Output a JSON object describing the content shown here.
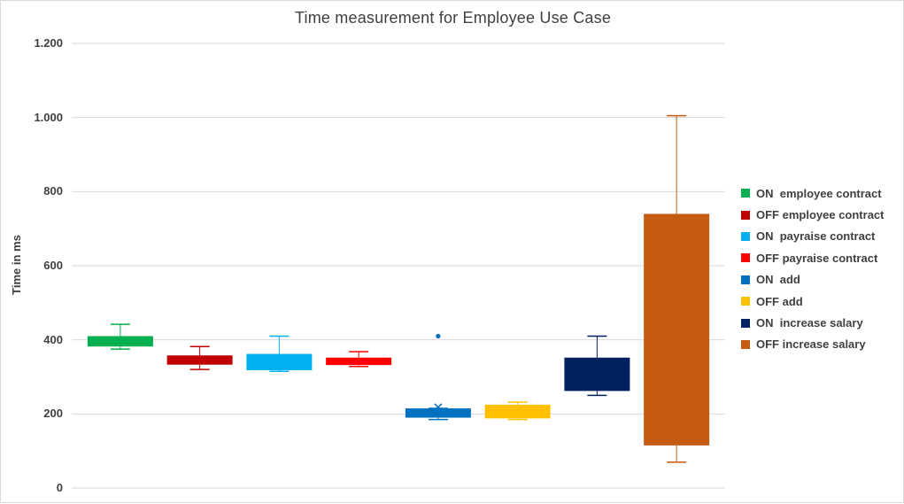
{
  "chart_data": {
    "type": "box",
    "title": "Time measurement  for Employee Use Case",
    "xlabel": "",
    "ylabel": "Time in ms",
    "ylim": [
      0,
      1200
    ],
    "yticks": [
      0,
      200,
      400,
      600,
      800,
      1000,
      1200
    ],
    "ytick_labels": [
      "0",
      "200",
      "400",
      "600",
      "800",
      "1.000",
      "1.200"
    ],
    "grid": true,
    "legend_position": "right",
    "series": [
      {
        "name": "ON  employee contract",
        "color": "#00b050",
        "min": 375,
        "q1": 382,
        "median": 382,
        "q3": 410,
        "max": 442,
        "mean": null,
        "outliers": []
      },
      {
        "name": "OFF employee contract",
        "color": "#c00000",
        "min": 320,
        "q1": 333,
        "median": 333,
        "q3": 358,
        "max": 382,
        "mean": null,
        "outliers": []
      },
      {
        "name": "ON  payraise contract",
        "color": "#00b0f0",
        "min": 315,
        "q1": 318,
        "median": 318,
        "q3": 362,
        "max": 410,
        "mean": null,
        "outliers": []
      },
      {
        "name": "OFF payraise contract",
        "color": "#ff0000",
        "min": 328,
        "q1": 332,
        "median": 332,
        "q3": 352,
        "max": 368,
        "mean": null,
        "outliers": []
      },
      {
        "name": "ON  add",
        "color": "#0070c0",
        "min": 185,
        "q1": 190,
        "median": 190,
        "q3": 215,
        "max": 215,
        "mean": 218,
        "outliers": [
          410
        ]
      },
      {
        "name": "OFF add",
        "color": "#ffc000",
        "min": 185,
        "q1": 188,
        "median": 188,
        "q3": 225,
        "max": 232,
        "mean": null,
        "outliers": []
      },
      {
        "name": "ON  increase salary",
        "color": "#002060",
        "min": 250,
        "q1": 262,
        "median": 262,
        "q3": 352,
        "max": 410,
        "mean": null,
        "outliers": []
      },
      {
        "name": "OFF increase salary",
        "color": "#c55a11",
        "min": 70,
        "q1": 115,
        "median": 115,
        "q3": 740,
        "max": 1005,
        "mean": null,
        "outliers": []
      }
    ]
  },
  "gridline_color": "#d9d9d9",
  "text_color": "#404040"
}
